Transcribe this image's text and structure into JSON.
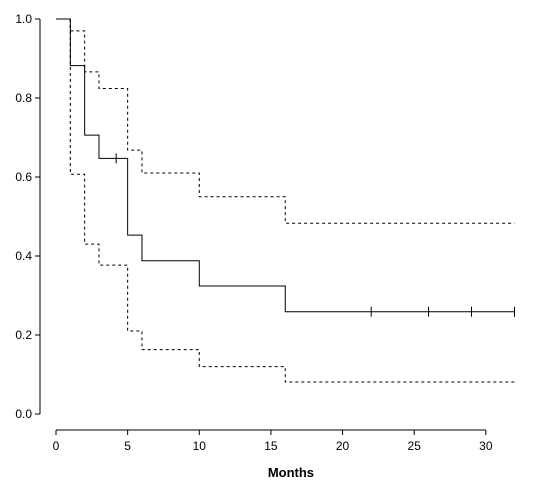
{
  "chart_data": {
    "type": "line",
    "title": "",
    "xlabel": "Months",
    "ylabel": "",
    "xlim": [
      0,
      32
    ],
    "ylim": [
      0,
      1
    ],
    "x_ticks": [
      0,
      5,
      10,
      15,
      20,
      25,
      30
    ],
    "y_ticks": [
      0.0,
      0.2,
      0.4,
      0.6,
      0.8,
      1.0
    ],
    "x_tick_labels": [
      "0",
      "5",
      "10",
      "15",
      "20",
      "25",
      "30"
    ],
    "y_tick_labels": [
      "0.0",
      "0.2",
      "0.4",
      "0.6",
      "0.8",
      "1.0"
    ],
    "grid": false,
    "series": [
      {
        "role": "survival estimate",
        "style": "solid",
        "step": true,
        "points": [
          [
            0,
            1.0
          ],
          [
            1,
            0.882
          ],
          [
            2,
            0.706
          ],
          [
            3,
            0.647
          ],
          [
            5,
            0.453
          ],
          [
            6,
            0.388
          ],
          [
            10,
            0.324
          ],
          [
            16,
            0.259
          ],
          [
            32,
            0.259
          ]
        ],
        "censored": [
          [
            4.2,
            0.647
          ],
          [
            22,
            0.259
          ],
          [
            26,
            0.259
          ],
          [
            29,
            0.259
          ],
          [
            32,
            0.259
          ]
        ]
      },
      {
        "role": "upper confidence limit",
        "style": "dashed",
        "step": true,
        "points": [
          [
            1,
            0.97
          ],
          [
            2,
            0.866
          ],
          [
            3,
            0.824
          ],
          [
            5,
            0.668
          ],
          [
            6,
            0.61
          ],
          [
            10,
            0.55
          ],
          [
            16,
            0.483
          ],
          [
            32,
            0.483
          ]
        ]
      },
      {
        "role": "lower confidence limit",
        "style": "dashed",
        "step": true,
        "points": [
          [
            1,
            0.607
          ],
          [
            2,
            0.43
          ],
          [
            3,
            0.377
          ],
          [
            5,
            0.21
          ],
          [
            6,
            0.163
          ],
          [
            10,
            0.12
          ],
          [
            16,
            0.081
          ],
          [
            32,
            0.081
          ]
        ]
      }
    ]
  }
}
